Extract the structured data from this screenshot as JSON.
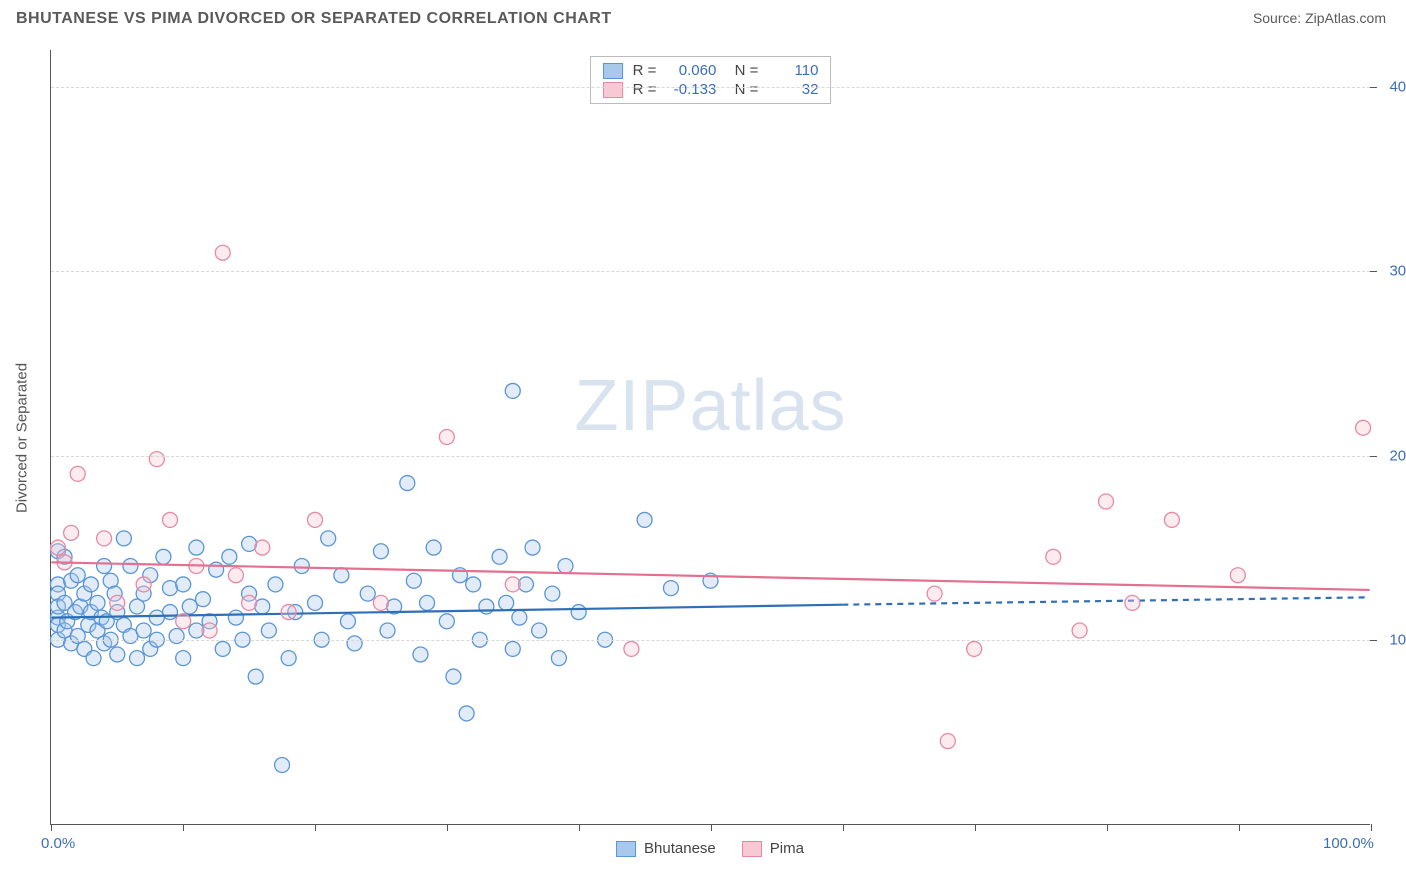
{
  "header": {
    "title": "BHUTANESE VS PIMA DIVORCED OR SEPARATED CORRELATION CHART",
    "source": "Source: ZipAtlas.com"
  },
  "chart": {
    "type": "scatter",
    "y_label": "Divorced or Separated",
    "watermark": "ZIPatlas",
    "background_color": "#ffffff",
    "grid_color": "#d8d8d8",
    "axis_color": "#555555",
    "tick_label_color": "#3b6fb5",
    "xlim": [
      0,
      100
    ],
    "ylim": [
      0,
      42
    ],
    "x_ticks": [
      0,
      10,
      20,
      30,
      40,
      50,
      60,
      70,
      80,
      90,
      100
    ],
    "x_tick_labels": {
      "0": "0.0%",
      "100": "100.0%"
    },
    "y_ticks": [
      10,
      20,
      30,
      40
    ],
    "y_tick_labels": {
      "10": "10.0%",
      "20": "20.0%",
      "30": "30.0%",
      "40": "40.0%"
    },
    "marker_radius": 7.5,
    "marker_stroke_width": 1.3,
    "marker_fill_opacity": 0.35,
    "trend_line_width": 2.2,
    "series": [
      {
        "name": "Bhutanese",
        "color_fill": "#a9c9ec",
        "color_stroke": "#5a95d6",
        "trend_color": "#2f6fb8",
        "R": "0.060",
        "N": "110",
        "trend": {
          "x1": 0,
          "y1": 11.2,
          "x2_solid": 60,
          "y2_solid": 11.9,
          "x2": 100,
          "y2": 12.3
        },
        "points": [
          [
            0.5,
            14.8
          ],
          [
            0.5,
            13.0
          ],
          [
            0.5,
            11.2
          ],
          [
            0.5,
            10.8
          ],
          [
            0.5,
            10.0
          ],
          [
            0.5,
            12.5
          ],
          [
            0.5,
            11.8
          ],
          [
            1.0,
            14.5
          ],
          [
            1.0,
            12.0
          ],
          [
            1.0,
            10.5
          ],
          [
            1.2,
            11.0
          ],
          [
            1.5,
            13.2
          ],
          [
            1.5,
            9.8
          ],
          [
            1.8,
            11.5
          ],
          [
            2.0,
            13.5
          ],
          [
            2.0,
            10.2
          ],
          [
            2.2,
            11.8
          ],
          [
            2.5,
            12.5
          ],
          [
            2.5,
            9.5
          ],
          [
            2.8,
            10.8
          ],
          [
            3.0,
            11.5
          ],
          [
            3.0,
            13.0
          ],
          [
            3.2,
            9.0
          ],
          [
            3.5,
            12.0
          ],
          [
            3.5,
            10.5
          ],
          [
            3.8,
            11.2
          ],
          [
            4.0,
            14.0
          ],
          [
            4.0,
            9.8
          ],
          [
            4.2,
            11.0
          ],
          [
            4.5,
            13.2
          ],
          [
            4.5,
            10.0
          ],
          [
            4.8,
            12.5
          ],
          [
            5.0,
            11.5
          ],
          [
            5.0,
            9.2
          ],
          [
            5.5,
            10.8
          ],
          [
            5.5,
            15.5
          ],
          [
            6.0,
            14.0
          ],
          [
            6.0,
            10.2
          ],
          [
            6.5,
            11.8
          ],
          [
            6.5,
            9.0
          ],
          [
            7.0,
            12.5
          ],
          [
            7.0,
            10.5
          ],
          [
            7.5,
            13.5
          ],
          [
            7.5,
            9.5
          ],
          [
            8.0,
            11.2
          ],
          [
            8.0,
            10.0
          ],
          [
            8.5,
            14.5
          ],
          [
            9.0,
            11.5
          ],
          [
            9.0,
            12.8
          ],
          [
            9.5,
            10.2
          ],
          [
            10.0,
            13.0
          ],
          [
            10.0,
            9.0
          ],
          [
            10.5,
            11.8
          ],
          [
            11.0,
            15.0
          ],
          [
            11.0,
            10.5
          ],
          [
            11.5,
            12.2
          ],
          [
            12.0,
            11.0
          ],
          [
            12.5,
            13.8
          ],
          [
            13.0,
            9.5
          ],
          [
            13.5,
            14.5
          ],
          [
            14.0,
            11.2
          ],
          [
            14.5,
            10.0
          ],
          [
            15.0,
            15.2
          ],
          [
            15.0,
            12.5
          ],
          [
            15.5,
            8.0
          ],
          [
            16.0,
            11.8
          ],
          [
            16.5,
            10.5
          ],
          [
            17.0,
            13.0
          ],
          [
            17.5,
            3.2
          ],
          [
            18.0,
            9.0
          ],
          [
            18.5,
            11.5
          ],
          [
            19.0,
            14.0
          ],
          [
            20.0,
            12.0
          ],
          [
            20.5,
            10.0
          ],
          [
            21.0,
            15.5
          ],
          [
            22.0,
            13.5
          ],
          [
            22.5,
            11.0
          ],
          [
            23.0,
            9.8
          ],
          [
            24.0,
            12.5
          ],
          [
            25.0,
            14.8
          ],
          [
            25.5,
            10.5
          ],
          [
            26.0,
            11.8
          ],
          [
            27.0,
            18.5
          ],
          [
            27.5,
            13.2
          ],
          [
            28.0,
            9.2
          ],
          [
            28.5,
            12.0
          ],
          [
            29.0,
            15.0
          ],
          [
            30.0,
            11.0
          ],
          [
            30.5,
            8.0
          ],
          [
            31.0,
            13.5
          ],
          [
            31.5,
            6.0
          ],
          [
            32.0,
            13.0
          ],
          [
            32.5,
            10.0
          ],
          [
            33.0,
            11.8
          ],
          [
            34.0,
            14.5
          ],
          [
            34.5,
            12.0
          ],
          [
            35.0,
            9.5
          ],
          [
            35.0,
            23.5
          ],
          [
            35.5,
            11.2
          ],
          [
            36.0,
            13.0
          ],
          [
            36.5,
            15.0
          ],
          [
            37.0,
            10.5
          ],
          [
            38.0,
            12.5
          ],
          [
            38.5,
            9.0
          ],
          [
            39.0,
            14.0
          ],
          [
            40.0,
            11.5
          ],
          [
            42.0,
            10.0
          ],
          [
            45.0,
            16.5
          ],
          [
            47.0,
            12.8
          ],
          [
            50.0,
            13.2
          ]
        ]
      },
      {
        "name": "Pima",
        "color_fill": "#f6c9d4",
        "color_stroke": "#e68aa4",
        "trend_color": "#e46f8e",
        "R": "-0.133",
        "N": "32",
        "trend": {
          "x1": 0,
          "y1": 14.2,
          "x2_solid": 100,
          "y2_solid": 12.7,
          "x2": 100,
          "y2": 12.7
        },
        "points": [
          [
            0.5,
            15.0
          ],
          [
            1.0,
            14.2
          ],
          [
            1.5,
            15.8
          ],
          [
            2.0,
            19.0
          ],
          [
            4.0,
            15.5
          ],
          [
            5.0,
            12.0
          ],
          [
            7.0,
            13.0
          ],
          [
            8.0,
            19.8
          ],
          [
            9.0,
            16.5
          ],
          [
            10.0,
            11.0
          ],
          [
            11.0,
            14.0
          ],
          [
            12.0,
            10.5
          ],
          [
            13.0,
            31.0
          ],
          [
            14.0,
            13.5
          ],
          [
            15.0,
            12.0
          ],
          [
            16.0,
            15.0
          ],
          [
            18.0,
            11.5
          ],
          [
            20.0,
            16.5
          ],
          [
            25.0,
            12.0
          ],
          [
            30.0,
            21.0
          ],
          [
            35.0,
            13.0
          ],
          [
            44.0,
            9.5
          ],
          [
            67.0,
            12.5
          ],
          [
            68.0,
            4.5
          ],
          [
            70.0,
            9.5
          ],
          [
            76.0,
            14.5
          ],
          [
            78.0,
            10.5
          ],
          [
            80.0,
            17.5
          ],
          [
            82.0,
            12.0
          ],
          [
            85.0,
            16.5
          ],
          [
            90.0,
            13.5
          ],
          [
            99.5,
            21.5
          ]
        ]
      }
    ],
    "legend_bottom": [
      {
        "label": "Bhutanese",
        "fill": "#a9c9ec",
        "stroke": "#5a95d6"
      },
      {
        "label": "Pima",
        "fill": "#f6c9d4",
        "stroke": "#e68aa4"
      }
    ]
  }
}
